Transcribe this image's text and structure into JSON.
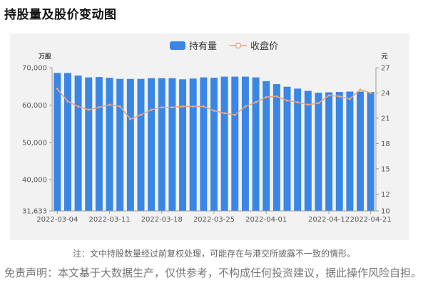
{
  "page": {
    "title": "持股量及股价变动图",
    "note": "注：文中持股数量经过前复权处理，可能存在与港交所披露不一致的情形。",
    "disclaimer": "免责声明：本文基于大数据生产，仅供参考，不构成任何投资建议，据此操作风险自担。"
  },
  "colors": {
    "bar": "#3a86e4",
    "line": "#e8a583",
    "panel": "#f2f2f2",
    "axis": "#999999"
  },
  "chart_data": {
    "type": "bar",
    "title": "",
    "legend": {
      "position": "top-center",
      "items": [
        "持有量",
        "收盘价"
      ]
    },
    "y_left": {
      "unit": "万股",
      "min": 31633,
      "max": 70000,
      "ticks": [
        31633,
        40000,
        50000,
        60000,
        70000
      ],
      "tick_labels": [
        "31,633",
        "40,000",
        "50,000",
        "60,000",
        "70,000"
      ]
    },
    "y_right": {
      "unit": "元",
      "min": 10,
      "max": 27,
      "ticks": [
        10,
        12,
        15,
        18,
        21,
        24,
        27
      ]
    },
    "x_tick_labels": [
      "2022-03-04",
      "2022-03-11",
      "2022-03-18",
      "2022-03-25",
      "2022-04-01",
      "2022-04-12",
      "2022-04-21"
    ],
    "x_tick_indices": [
      0,
      5,
      10,
      15,
      20,
      26,
      30
    ],
    "grid": false,
    "series": [
      {
        "name": "持有量",
        "type": "bar",
        "axis": "left",
        "values": [
          68600,
          68600,
          67900,
          67400,
          67500,
          67300,
          67000,
          67000,
          67000,
          67200,
          67200,
          67200,
          66900,
          67100,
          67400,
          67300,
          67600,
          67600,
          67600,
          67400,
          66400,
          65600,
          64900,
          64400,
          63800,
          63300,
          63400,
          63500,
          63600,
          63600,
          63500
        ]
      },
      {
        "name": "收盘价",
        "type": "line",
        "axis": "right",
        "values": [
          24.5,
          23.0,
          22.4,
          22.0,
          22.3,
          22.6,
          22.4,
          20.9,
          21.4,
          22.0,
          22.3,
          22.3,
          22.4,
          22.4,
          22.4,
          21.9,
          21.6,
          21.4,
          22.4,
          22.9,
          23.5,
          23.6,
          23.1,
          22.9,
          22.6,
          22.8,
          23.7,
          23.6,
          23.3,
          24.4,
          24.0
        ]
      }
    ]
  }
}
